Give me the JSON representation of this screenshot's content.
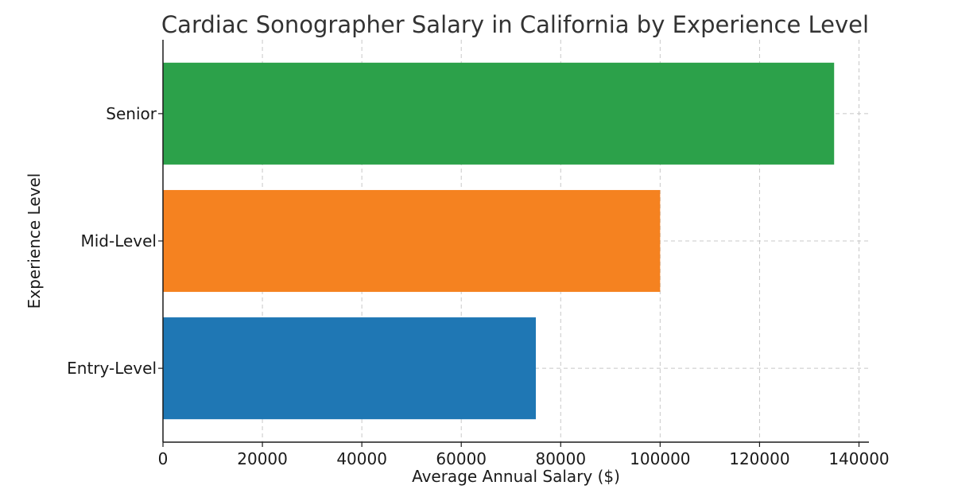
{
  "chart_data": {
    "type": "bar",
    "orientation": "horizontal",
    "title": "Cardiac Sonographer Salary in California by Experience Level",
    "xlabel": "Average Annual Salary ($)",
    "ylabel": "Experience Level",
    "categories": [
      "Entry-Level",
      "Mid-Level",
      "Senior"
    ],
    "values": [
      75000,
      100000,
      135000
    ],
    "colors": [
      "#1f77b4",
      "#f58220",
      "#2ca14a"
    ],
    "xlim": [
      0,
      142000
    ],
    "xticks": [
      0,
      20000,
      40000,
      60000,
      80000,
      100000,
      120000,
      140000
    ],
    "grid": true
  }
}
